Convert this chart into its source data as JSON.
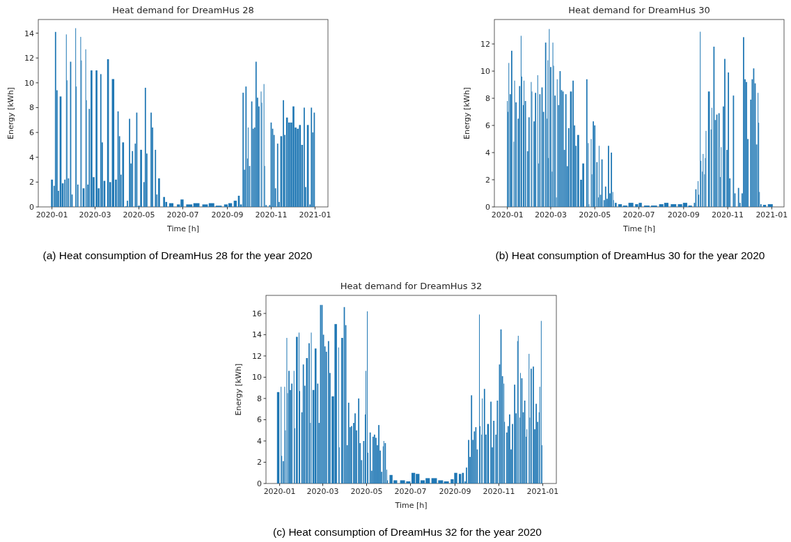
{
  "chart_data": [
    {
      "type": "bar",
      "title": "Heat demand for DreamHus 28",
      "xlabel": "Time [h]",
      "ylabel": "Energy [kWh]",
      "annotations": [
        "(a) Heat consumption of DreamHus 28 for the year 2020"
      ],
      "color": "#1f77b4",
      "x": [
        "2020-01-01",
        "2020-01-04",
        "2020-01-06",
        "2020-01-08",
        "2020-01-10",
        "2020-01-13",
        "2020-01-16",
        "2020-01-19",
        "2020-01-21",
        "2020-01-22",
        "2020-01-24",
        "2020-01-27",
        "2020-01-29",
        "2020-02-03",
        "2020-02-04",
        "2020-02-06",
        "2020-02-10",
        "2020-02-11",
        "2020-02-14",
        "2020-02-17",
        "2020-02-18",
        "2020-02-20",
        "2020-02-22",
        "2020-02-25",
        "2020-02-28",
        "2020-03-03",
        "2020-03-06",
        "2020-03-09",
        "2020-03-11",
        "2020-03-14",
        "2020-03-19",
        "2020-03-22",
        "2020-03-26",
        "2020-03-30",
        "2020-04-02",
        "2020-04-04",
        "2020-04-06",
        "2020-04-09",
        "2020-04-13",
        "2020-04-15",
        "2020-04-18",
        "2020-04-20",
        "2020-04-22",
        "2020-04-26",
        "2020-04-28",
        "2020-05-01",
        "2020-05-04",
        "2020-05-08",
        "2020-05-10",
        "2020-05-12",
        "2020-05-18",
        "2020-05-20",
        "2020-05-24",
        "2020-05-26",
        "2020-05-29",
        "2020-06-05",
        "2020-06-08",
        "2020-06-15",
        "2020-06-25",
        "2020-06-30",
        "2020-07-10",
        "2020-07-20",
        "2020-08-01",
        "2020-08-10",
        "2020-08-20",
        "2020-08-30",
        "2020-09-05",
        "2020-09-12",
        "2020-09-17",
        "2020-09-20",
        "2020-09-23",
        "2020-09-25",
        "2020-09-27",
        "2020-09-29",
        "2020-09-30",
        "2020-10-02",
        "2020-10-05",
        "2020-10-07",
        "2020-10-09",
        "2020-10-11",
        "2020-10-13",
        "2020-10-15",
        "2020-10-18",
        "2020-10-19",
        "2020-10-22",
        "2020-10-23",
        "2020-10-25",
        "2020-10-30",
        "2020-11-01",
        "2020-11-03",
        "2020-11-05",
        "2020-11-07",
        "2020-11-10",
        "2020-11-12",
        "2020-11-15",
        "2020-11-18",
        "2020-11-20",
        "2020-11-23",
        "2020-11-26",
        "2020-11-29",
        "2020-12-02",
        "2020-12-05",
        "2020-12-08",
        "2020-12-11",
        "2020-12-14",
        "2020-12-17",
        "2020-12-19",
        "2020-12-22",
        "2020-12-25",
        "2020-12-27",
        "2020-12-29",
        "2020-12-31"
      ],
      "values": [
        2.2,
        1.7,
        14.1,
        9.4,
        1.3,
        8.9,
        1.9,
        2.2,
        13.9,
        10.2,
        2.3,
        11.7,
        1.0,
        14.4,
        9.7,
        1.8,
        13.7,
        11.8,
        1.5,
        12.7,
        8.6,
        1.8,
        7.9,
        11.0,
        2.4,
        11.0,
        1.5,
        10.7,
        5.2,
        2.1,
        11.9,
        2.0,
        10.3,
        2.2,
        7.7,
        5.7,
        2.6,
        5.2,
        0.05,
        0.5,
        7.1,
        3.5,
        4.5,
        5.1,
        7.6,
        0.1,
        4.6,
        2.0,
        9.6,
        4.3,
        7.6,
        6.4,
        4.6,
        1.0,
        2.3,
        0.8,
        0.4,
        0.3,
        0.2,
        0.6,
        0.2,
        0.3,
        0.2,
        0.3,
        0.1,
        0.2,
        0.3,
        0.5,
        0.9,
        0.2,
        9.2,
        3.0,
        9.7,
        3.9,
        6.4,
        3.3,
        8.5,
        6.3,
        6.4,
        11.7,
        8.8,
        8.1,
        9.3,
        8.4,
        9.9,
        3.3,
        0.15,
        0.15,
        6.8,
        6.3,
        5.8,
        1.5,
        5.1,
        0.4,
        5.7,
        8.6,
        5.8,
        7.2,
        6.8,
        6.8,
        8.1,
        6.4,
        6.3,
        6.6,
        5.0,
        8.0,
        1.6,
        6.6,
        0.2,
        8.0,
        6.0,
        7.6
      ],
      "xlim": [
        "2019-12-13",
        "2021-01-19"
      ],
      "xticks": [
        {
          "value": "2020-01-01",
          "label": "2020-01"
        },
        {
          "value": "2020-03-01",
          "label": "2020-03"
        },
        {
          "value": "2020-05-01",
          "label": "2020-05"
        },
        {
          "value": "2020-07-01",
          "label": "2020-07"
        },
        {
          "value": "2020-09-01",
          "label": "2020-09"
        },
        {
          "value": "2020-11-01",
          "label": "2020-11"
        },
        {
          "value": "2021-01-01",
          "label": "2021-01"
        }
      ],
      "ylim": [
        0,
        15.1
      ],
      "yticks": [
        0,
        2,
        4,
        6,
        8,
        10,
        12,
        14
      ],
      "grid": false
    },
    {
      "type": "bar",
      "title": "Heat demand for DreamHus 30",
      "xlabel": "Time [h]",
      "ylabel": "Energy [kWh]",
      "annotations": [
        "(b) Heat consumption of DreamHus 30 for the year 2020"
      ],
      "color": "#1f77b4",
      "x": [
        "2020-01-01",
        "2020-01-02",
        "2020-01-03",
        "2020-01-05",
        "2020-01-07",
        "2020-01-10",
        "2020-01-11",
        "2020-01-13",
        "2020-01-16",
        "2020-01-18",
        "2020-01-20",
        "2020-01-21",
        "2020-01-23",
        "2020-01-24",
        "2020-01-26",
        "2020-01-29",
        "2020-01-31",
        "2020-02-03",
        "2020-02-04",
        "2020-02-07",
        "2020-02-09",
        "2020-02-12",
        "2020-02-13",
        "2020-02-15",
        "2020-02-18",
        "2020-02-20",
        "2020-02-23",
        "2020-02-25",
        "2020-02-26",
        "2020-02-27",
        "2020-02-28",
        "2020-03-01",
        "2020-03-03",
        "2020-03-04",
        "2020-03-05",
        "2020-03-07",
        "2020-03-09",
        "2020-03-10",
        "2020-03-12",
        "2020-03-14",
        "2020-03-16",
        "2020-03-18",
        "2020-03-20",
        "2020-03-22",
        "2020-03-24",
        "2020-03-26",
        "2020-03-29",
        "2020-04-01",
        "2020-04-03",
        "2020-04-05",
        "2020-04-08",
        "2020-04-12",
        "2020-04-15",
        "2020-04-20",
        "2020-04-22",
        "2020-04-23",
        "2020-04-26",
        "2020-04-27",
        "2020-04-29",
        "2020-05-01",
        "2020-05-04",
        "2020-05-06",
        "2020-05-07",
        "2020-05-09",
        "2020-05-11",
        "2020-05-14",
        "2020-05-16",
        "2020-05-18",
        "2020-05-20",
        "2020-05-22",
        "2020-05-24",
        "2020-05-26",
        "2020-05-27",
        "2020-05-30",
        "2020-06-05",
        "2020-06-12",
        "2020-06-20",
        "2020-06-28",
        "2020-07-03",
        "2020-07-12",
        "2020-07-22",
        "2020-08-01",
        "2020-08-08",
        "2020-08-18",
        "2020-08-27",
        "2020-09-03",
        "2020-09-10",
        "2020-09-16",
        "2020-09-18",
        "2020-09-21",
        "2020-09-22",
        "2020-09-24",
        "2020-09-25",
        "2020-09-27",
        "2020-09-28",
        "2020-09-30",
        "2020-10-01",
        "2020-10-02",
        "2020-10-06",
        "2020-10-09",
        "2020-10-10",
        "2020-10-13",
        "2020-10-15",
        "2020-10-17",
        "2020-10-20",
        "2020-10-22",
        "2020-10-23",
        "2020-10-26",
        "2020-10-28",
        "2020-10-31",
        "2020-11-02",
        "2020-11-04",
        "2020-11-09",
        "2020-11-11",
        "2020-11-16",
        "2020-11-18",
        "2020-11-21",
        "2020-11-23",
        "2020-11-25",
        "2020-11-27",
        "2020-11-29",
        "2020-12-03",
        "2020-12-05",
        "2020-12-07",
        "2020-12-09",
        "2020-12-11",
        "2020-12-13",
        "2020-12-14",
        "2020-12-15",
        "2020-12-17",
        "2020-12-22",
        "2020-12-30"
      ],
      "values": [
        7.8,
        7.0,
        10.6,
        8.3,
        11.5,
        4.8,
        9.3,
        7.7,
        6.5,
        8.9,
        12.6,
        9.6,
        7.5,
        9.3,
        7.8,
        4.1,
        6.6,
        9.2,
        8.5,
        6.3,
        8.4,
        9.7,
        3.2,
        8.3,
        8.8,
        7.0,
        12.1,
        6.5,
        10.8,
        3.6,
        13.1,
        10.3,
        2.6,
        12.1,
        10.4,
        8.2,
        0.7,
        9.4,
        7.5,
        10.0,
        8.6,
        8.5,
        4.2,
        8.3,
        3.0,
        5.8,
        8.5,
        9.3,
        6.0,
        4.5,
        5.3,
        2.0,
        3.2,
        9.4,
        4.7,
        0.2,
        5.0,
        2.4,
        6.3,
        6.0,
        3.3,
        0.7,
        4.5,
        0.9,
        3.5,
        0.5,
        1.5,
        0.6,
        4.5,
        1.0,
        4.0,
        1.1,
        0.5,
        0.3,
        0.2,
        0.1,
        0.3,
        0.2,
        0.3,
        0.1,
        0.1,
        0.2,
        0.3,
        0.2,
        0.2,
        0.3,
        0.1,
        0.3,
        1.3,
        1.9,
        0.9,
        12.9,
        3.4,
        2.6,
        3.9,
        2.4,
        3.6,
        5.6,
        8.5,
        5.7,
        7.3,
        11.8,
        6.4,
        6.8,
        6.9,
        2.2,
        4.4,
        7.4,
        10.9,
        4.2,
        9.9,
        2.1,
        8.2,
        1.0,
        1.4,
        0.3,
        1.0,
        12.5,
        9.4,
        9.2,
        5.0,
        7.9,
        9.4,
        10.2,
        9.1,
        4.6,
        8.4,
        6.2,
        1.1,
        0.2,
        0.15,
        0.2
      ],
      "xlim": [
        "2019-12-14",
        "2021-01-18"
      ],
      "xticks": [
        {
          "value": "2020-01-01",
          "label": "2020-01"
        },
        {
          "value": "2020-03-01",
          "label": "2020-03"
        },
        {
          "value": "2020-05-01",
          "label": "2020-05"
        },
        {
          "value": "2020-07-01",
          "label": "2020-07"
        },
        {
          "value": "2020-09-01",
          "label": "2020-09"
        },
        {
          "value": "2020-11-01",
          "label": "2020-11"
        },
        {
          "value": "2021-01-01",
          "label": "2021-01"
        }
      ],
      "ylim": [
        0,
        13.8
      ],
      "yticks": [
        0,
        2,
        4,
        6,
        8,
        10,
        12
      ],
      "grid": false
    },
    {
      "type": "bar",
      "title": "Heat demand for DreamHus 32",
      "xlabel": "Time [h]",
      "ylabel": "Energy [kWh]",
      "annotations": [
        "(c) Heat consumption of DreamHus 32 for the year 2020"
      ],
      "color": "#1f77b4",
      "x": [
        "2019-12-30",
        "2020-01-03",
        "2020-01-04",
        "2020-01-06",
        "2020-01-08",
        "2020-01-09",
        "2020-01-11",
        "2020-01-12",
        "2020-01-14",
        "2020-01-16",
        "2020-01-18",
        "2020-01-21",
        "2020-01-22",
        "2020-01-25",
        "2020-01-28",
        "2020-01-29",
        "2020-02-01",
        "2020-02-03",
        "2020-02-05",
        "2020-02-08",
        "2020-02-11",
        "2020-02-13",
        "2020-02-14",
        "2020-02-17",
        "2020-02-20",
        "2020-02-23",
        "2020-02-25",
        "2020-02-27",
        "2020-02-29",
        "2020-03-02",
        "2020-03-04",
        "2020-03-06",
        "2020-03-09",
        "2020-03-11",
        "2020-03-15",
        "2020-03-19",
        "2020-03-23",
        "2020-03-24",
        "2020-03-28",
        "2020-03-31",
        "2020-04-02",
        "2020-04-04",
        "2020-04-06",
        "2020-04-08",
        "2020-04-10",
        "2020-04-13",
        "2020-04-15",
        "2020-04-17",
        "2020-04-20",
        "2020-04-22",
        "2020-04-24",
        "2020-04-27",
        "2020-04-29",
        "2020-04-30",
        "2020-05-02",
        "2020-05-03",
        "2020-05-06",
        "2020-05-08",
        "2020-05-10",
        "2020-05-12",
        "2020-05-14",
        "2020-05-16",
        "2020-05-18",
        "2020-05-20",
        "2020-05-22",
        "2020-05-24",
        "2020-05-25",
        "2020-05-27",
        "2020-05-29",
        "2020-05-30",
        "2020-06-04",
        "2020-06-10",
        "2020-06-20",
        "2020-06-28",
        "2020-07-05",
        "2020-07-11",
        "2020-07-18",
        "2020-07-25",
        "2020-08-03",
        "2020-08-12",
        "2020-08-20",
        "2020-08-28",
        "2020-09-02",
        "2020-09-08",
        "2020-09-12",
        "2020-09-15",
        "2020-09-17",
        "2020-09-20",
        "2020-09-22",
        "2020-09-24",
        "2020-09-26",
        "2020-09-28",
        "2020-09-30",
        "2020-10-02",
        "2020-10-05",
        "2020-10-06",
        "2020-10-08",
        "2020-10-09",
        "2020-10-12",
        "2020-10-14",
        "2020-10-17",
        "2020-10-21",
        "2020-10-23",
        "2020-10-25",
        "2020-10-28",
        "2020-10-30",
        "2020-11-02",
        "2020-11-04",
        "2020-11-06",
        "2020-11-08",
        "2020-11-09",
        "2020-11-12",
        "2020-11-14",
        "2020-11-16",
        "2020-11-18",
        "2020-11-20",
        "2020-11-23",
        "2020-11-25",
        "2020-11-27",
        "2020-11-28",
        "2020-11-30",
        "2020-12-01",
        "2020-12-03",
        "2020-12-05",
        "2020-12-07",
        "2020-12-09",
        "2020-12-10",
        "2020-12-13",
        "2020-12-14",
        "2020-12-16",
        "2020-12-19",
        "2020-12-21",
        "2020-12-23",
        "2020-12-25",
        "2020-12-27",
        "2020-12-28",
        "2020-12-30",
        "2020-12-31"
      ],
      "values": [
        8.6,
        9.1,
        2.6,
        2.1,
        9.1,
        5.0,
        13.7,
        8.5,
        10.6,
        8.8,
        9.4,
        10.6,
        5.2,
        13.8,
        14.2,
        8.7,
        6.7,
        11.2,
        9.2,
        11.8,
        13.2,
        5.7,
        14.2,
        8.8,
        12.7,
        9.4,
        5.7,
        16.8,
        16.8,
        14.0,
        12.9,
        12.4,
        13.4,
        10.4,
        8.2,
        15.0,
        12.8,
        3.4,
        13.7,
        16.6,
        14.9,
        3.6,
        7.6,
        5.3,
        5.4,
        5.7,
        6.6,
        5.0,
        8.0,
        3.8,
        2.2,
        4.0,
        6.5,
        10.6,
        16.2,
        2.9,
        4.8,
        1.2,
        4.4,
        4.6,
        4.3,
        3.6,
        5.5,
        3.1,
        1.1,
        3.5,
        4.0,
        3.8,
        1.3,
        0.3,
        0.8,
        0.3,
        0.3,
        0.2,
        1.0,
        0.9,
        0.3,
        0.5,
        0.5,
        0.3,
        0.2,
        0.4,
        1.0,
        0.9,
        1.0,
        0.2,
        1.5,
        4.1,
        2.5,
        8.3,
        4.1,
        4.9,
        5.3,
        3.2,
        15.9,
        5.4,
        4.6,
        8.0,
        8.9,
        4.6,
        5.6,
        7.7,
        3.4,
        5.9,
        4.6,
        7.8,
        11.2,
        14.5,
        10.1,
        9.4,
        5.8,
        4.8,
        5.4,
        6.5,
        3.2,
        5.6,
        9.3,
        6.6,
        13.4,
        13.9,
        6.2,
        10.4,
        9.9,
        6.7,
        7.8,
        4.4,
        5.1,
        12.2,
        6.2,
        10.8,
        11.0,
        5.1,
        7.5,
        5.8,
        6.7,
        9.1,
        15.3,
        3.6
      ],
      "xlim": [
        "2019-12-13",
        "2021-01-20"
      ],
      "xticks": [
        {
          "value": "2020-01-01",
          "label": "2020-01"
        },
        {
          "value": "2020-03-01",
          "label": "2020-03"
        },
        {
          "value": "2020-05-01",
          "label": "2020-05"
        },
        {
          "value": "2020-07-01",
          "label": "2020-07"
        },
        {
          "value": "2020-09-01",
          "label": "2020-09"
        },
        {
          "value": "2020-11-01",
          "label": "2020-11"
        },
        {
          "value": "2021-01-01",
          "label": "2021-01"
        }
      ],
      "ylim": [
        0,
        17.7
      ],
      "yticks": [
        0,
        2,
        4,
        6,
        8,
        10,
        12,
        14,
        16
      ],
      "grid": false
    }
  ]
}
